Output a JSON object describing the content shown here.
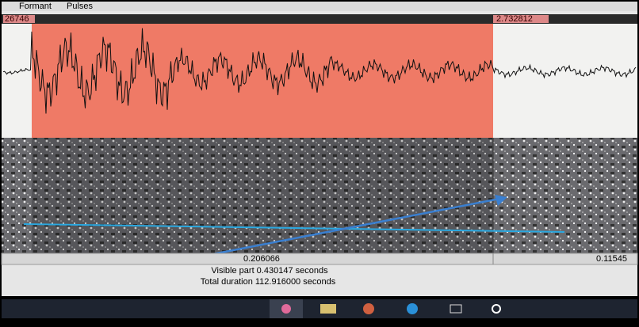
{
  "menu": {
    "items": [
      "Formant",
      "Pulses"
    ]
  },
  "selection": {
    "start_label": "26746",
    "end_label": "2.732812"
  },
  "time_axis": {
    "selection_duration": "0.206066",
    "right_duration": "0.11545"
  },
  "status": {
    "visible_part": "Visible part 0.430147 seconds",
    "total_duration": "Total duration 112.916000 seconds"
  }
}
